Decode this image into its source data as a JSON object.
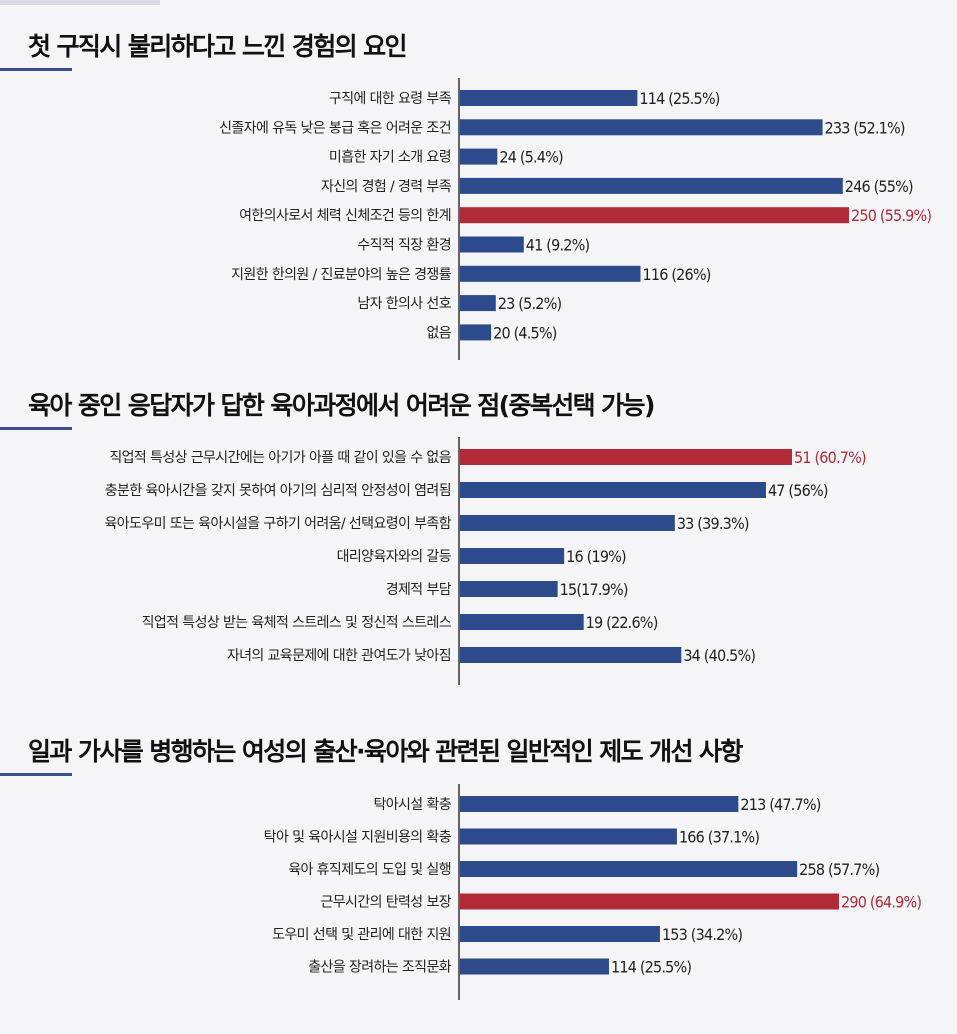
{
  "colors": {
    "bar": "#2c4a8c",
    "highlight": "#b02a37",
    "axis": "#333333",
    "title_rule": "#3b4f8f"
  },
  "chart_data": [
    {
      "type": "bar",
      "orientation": "horizontal",
      "title": "첫 구직시 불리하다고 느낀 경험의 요인",
      "categories": [
        "구직에 대한 요령 부족",
        "신졸자에 유독 낮은 봉급 혹은 어려운 조건",
        "미흡한 자기 소개 요령",
        "자신의 경험 / 경력 부족",
        "여한의사로서 체력 신체조건 등의 한계",
        "수직적 직장 환경",
        "지원한 한의원 / 진료분야의 높은 경쟁률",
        "남자 한의사 선호",
        "없음"
      ],
      "values": [
        114,
        233,
        24,
        246,
        250,
        41,
        116,
        23,
        20
      ],
      "value_labels": [
        "114 (25.5%)",
        "233 (52.1%)",
        "24 (5.4%)",
        "246 (55%)",
        "250 (55.9%)",
        "41 (9.2%)",
        "116 (26%)",
        "23 (5.2%)",
        "20 (4.5%)"
      ],
      "highlight_index": 4,
      "xlim": [
        0,
        250
      ]
    },
    {
      "type": "bar",
      "orientation": "horizontal",
      "title": "육아 중인 응답자가 답한 육아과정에서 어려운 점(중복선택 가능)",
      "categories": [
        "직업적 특성상 근무시간에는 아기가 아플 때 같이 있을 수 없음",
        "충분한 육아시간을 갖지 못하여 아기의 심리적 안정성이 염려됨",
        "육아도우미 또는 육아시설을 구하기 어려움/ 선택요령이 부족함",
        "대리양육자와의 갈등",
        "경제적 부담",
        "직업적 특성상 받는 육체적 스트레스 및 정신적 스트레스",
        "자녀의 교육문제에 대한 관여도가 낮아짐"
      ],
      "values": [
        51,
        47,
        33,
        16,
        15,
        19,
        34
      ],
      "value_labels": [
        "51 (60.7%)",
        "47 (56%)",
        "33 (39.3%)",
        "16 (19%)",
        "15(17.9%)",
        "19 (22.6%)",
        "34 (40.5%)"
      ],
      "highlight_index": 0,
      "xlim": [
        0,
        51
      ]
    },
    {
      "type": "bar",
      "orientation": "horizontal",
      "title": "일과 가사를 병행하는 여성의 출산·육아와 관련된 일반적인 제도 개선 사항",
      "categories": [
        "탁아시설 확충",
        "탁아 및 육아시설 지원비용의 확충",
        "육아 휴직제도의 도입 및 실행",
        "근무시간의 탄력성 보장",
        "도우미 선택 및 관리에 대한 지원",
        "출산을 장려하는 조직문화"
      ],
      "values": [
        213,
        166,
        258,
        290,
        153,
        114
      ],
      "value_labels": [
        "213 (47.7%)",
        "166 (37.1%)",
        "258 (57.7%)",
        "290 (64.9%)",
        "153 (34.2%)",
        "114 (25.5%)"
      ],
      "highlight_index": 3,
      "xlim": [
        0,
        290
      ]
    }
  ]
}
